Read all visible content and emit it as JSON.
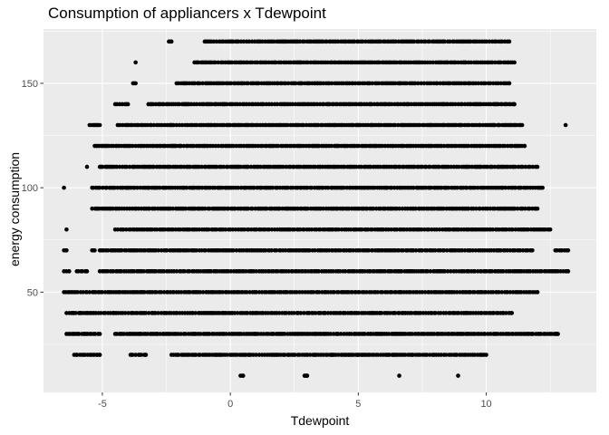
{
  "chart_data": {
    "type": "scatter",
    "title": "Consumption of appliancers x Tdewpoint",
    "xlabel": "Tdewpoint",
    "ylabel": "energy consumption",
    "xlim": [
      -7.3,
      14.3
    ],
    "ylim": [
      2,
      176
    ],
    "x_ticks": [
      -5,
      0,
      5,
      10
    ],
    "y_ticks": [
      50,
      100,
      150
    ],
    "grid": true,
    "panel_background": "#ebebeb",
    "grid_color": "#ffffff",
    "point_color": "#000000",
    "series": [
      {
        "values": [
          {
            "y": 10,
            "segments": [
              [
                0.4,
                0.5
              ],
              [
                2.9,
                3.0
              ],
              [
                6.6,
                6.6
              ],
              [
                8.9,
                8.9
              ]
            ]
          },
          {
            "y": 20,
            "segments": [
              [
                -6.1,
                -5.1
              ],
              [
                -3.9,
                -3.3
              ],
              [
                -2.3,
                10
              ]
            ]
          },
          {
            "y": 30,
            "segments": [
              [
                -6.4,
                -5.1
              ],
              [
                -4.5,
                12.8
              ]
            ]
          },
          {
            "y": 40,
            "segments": [
              [
                -6.4,
                11
              ]
            ]
          },
          {
            "y": 50,
            "segments": [
              [
                -6.5,
                12
              ]
            ]
          },
          {
            "y": 60,
            "segments": [
              [
                -6.5,
                -6.3
              ],
              [
                -6.0,
                -5.6
              ],
              [
                -5.1,
                13.2
              ]
            ]
          },
          {
            "y": 70,
            "segments": [
              [
                -6.5,
                -6.4
              ],
              [
                -5.4,
                -5.3
              ],
              [
                -5.1,
                11.8
              ],
              [
                12.7,
                13.2
              ]
            ]
          },
          {
            "y": 80,
            "segments": [
              [
                -6.4,
                -6.4
              ],
              [
                -4.5,
                12.5
              ]
            ]
          },
          {
            "y": 90,
            "segments": [
              [
                -5.4,
                12
              ]
            ]
          },
          {
            "y": 100,
            "segments": [
              [
                -6.5,
                -6.5
              ],
              [
                -5.4,
                12.2
              ]
            ]
          },
          {
            "y": 110,
            "segments": [
              [
                -5.6,
                -5.6
              ],
              [
                -5.1,
                12
              ]
            ]
          },
          {
            "y": 120,
            "segments": [
              [
                -5.3,
                11.5
              ]
            ]
          },
          {
            "y": 130,
            "segments": [
              [
                -5.5,
                -5.1
              ],
              [
                -4.4,
                11.4
              ],
              [
                13.1,
                13.1
              ]
            ]
          },
          {
            "y": 140,
            "segments": [
              [
                -4.5,
                -4.0
              ],
              [
                -3.2,
                11.1
              ]
            ]
          },
          {
            "y": 150,
            "segments": [
              [
                -3.8,
                -3.7
              ],
              [
                -2.1,
                10.9
              ]
            ]
          },
          {
            "y": 160,
            "segments": [
              [
                -3.7,
                -3.7
              ],
              [
                -1.4,
                11.1
              ]
            ]
          },
          {
            "y": 170,
            "segments": [
              [
                -2.4,
                -2.3
              ],
              [
                -1.0,
                10.9
              ]
            ]
          }
        ]
      }
    ]
  }
}
